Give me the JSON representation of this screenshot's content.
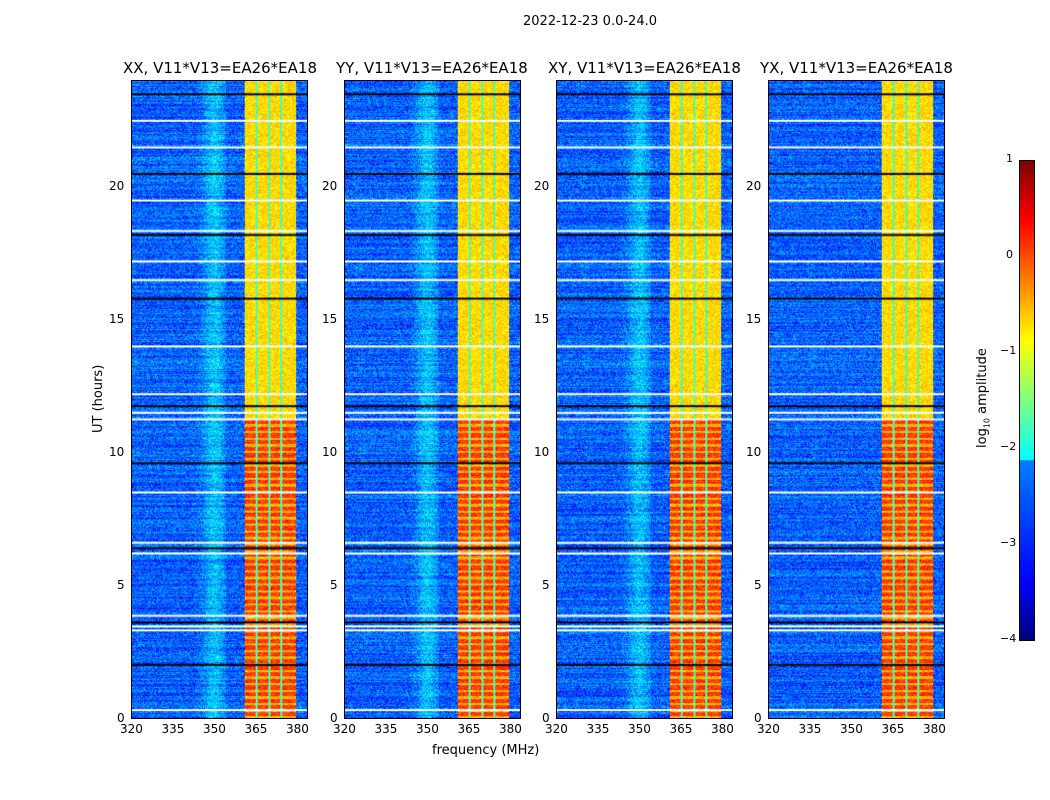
{
  "suptitle": "2022-12-23 0.0-24.0",
  "chart_data": {
    "type": "heatmap",
    "panels": [
      {
        "title": "XX, V11*V13=EA26*EA18"
      },
      {
        "title": "YY, V11*V13=EA26*EA18"
      },
      {
        "title": "XY, V11*V13=EA26*EA18"
      },
      {
        "title": "YX, V11*V13=EA26*EA18"
      }
    ],
    "xlabel": "frequency (MHz)",
    "ylabel": "UT (hours)",
    "xlim": [
      320,
      384
    ],
    "ylim": [
      0,
      24
    ],
    "xticks": [
      320,
      335,
      350,
      365,
      380
    ],
    "yticks": [
      0,
      5,
      10,
      15,
      20
    ],
    "colorbar": {
      "label": "log10 amplitude",
      "label_main": "log",
      "label_sub": "10",
      "label_rest": " amplitude",
      "range": [
        -4,
        1
      ],
      "ticks": [
        1,
        0,
        -1,
        -2,
        -3,
        -4
      ],
      "tick_labels": [
        "1",
        "0",
        "−1",
        "−2",
        "−3",
        "−4"
      ],
      "colormap": "jet"
    },
    "background_level": -2.9,
    "rfi_band_mhz": [
      361,
      380
    ],
    "rfi_subband_gaps_mhz": [
      365.5,
      370,
      374.5
    ],
    "rfi_level_early": 0.1,
    "rfi_level_late": -0.7,
    "rfi_transition_hour": 11.3,
    "flagged_hours": [
      0.3,
      2.0,
      3.3,
      3.45,
      3.6,
      3.85,
      6.2,
      6.4,
      6.6,
      8.5,
      9.6,
      11.25,
      11.5,
      11.75,
      12.2,
      14.0,
      15.8,
      16.5,
      17.2,
      18.2,
      18.35,
      19.5,
      20.5,
      21.5,
      22.5,
      23.5
    ]
  }
}
